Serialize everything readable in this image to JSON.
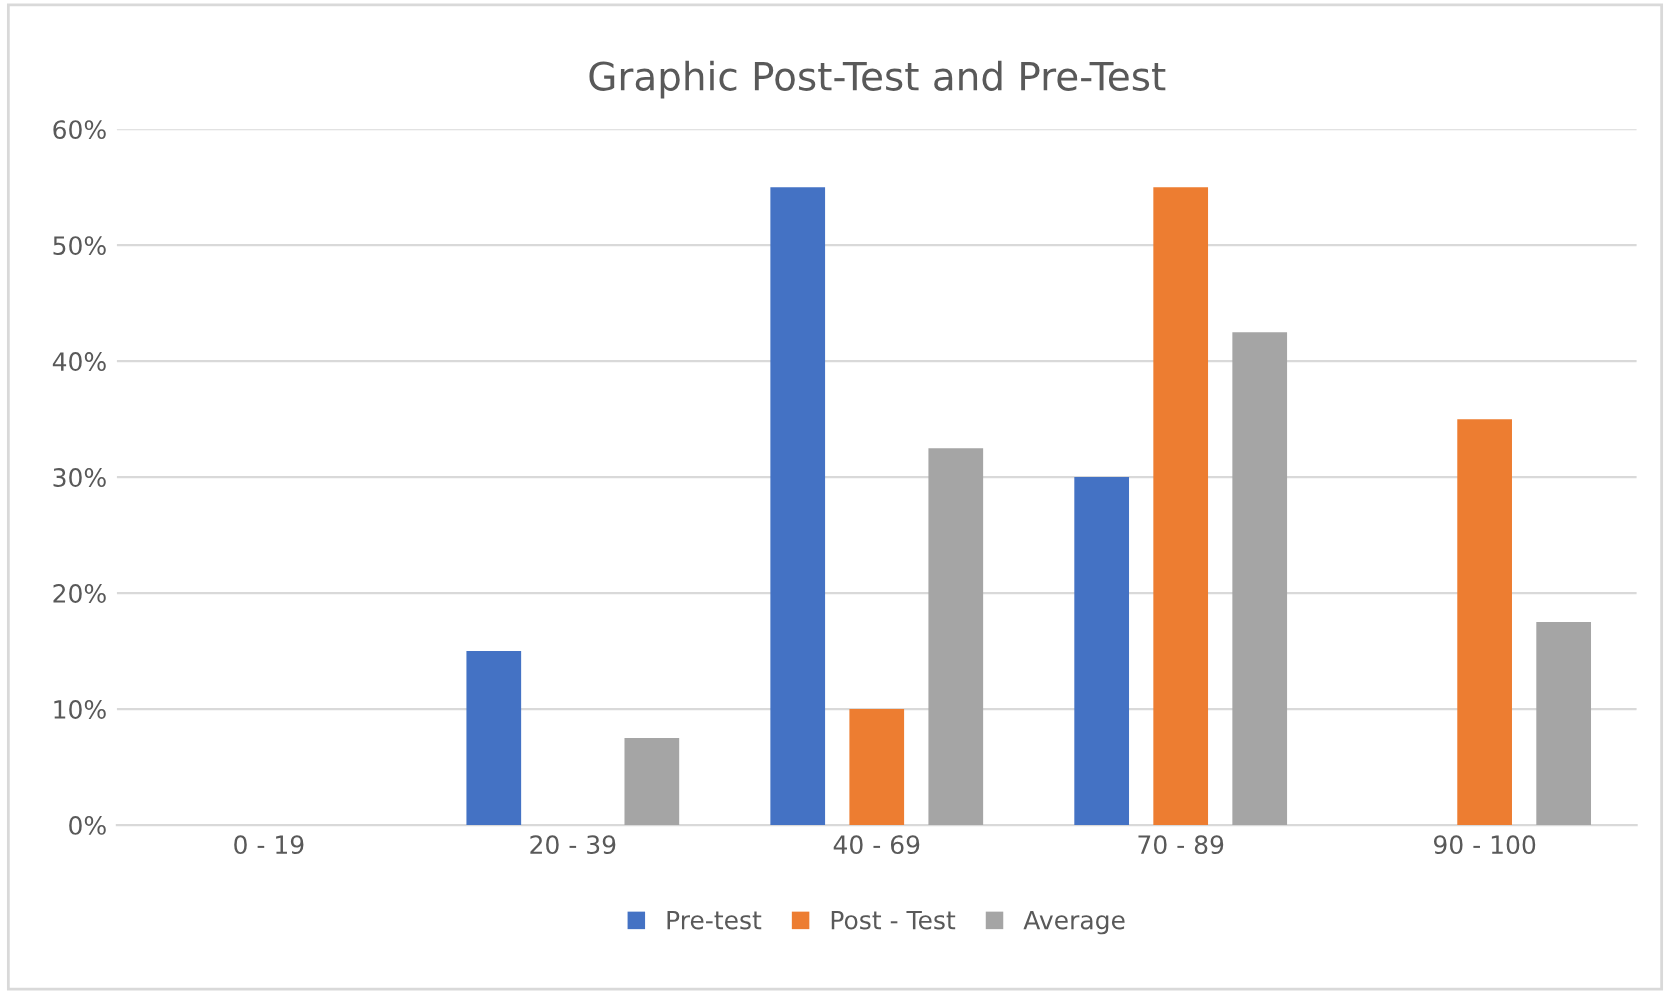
{
  "chart_data": {
    "type": "bar",
    "title": "Graphic Post-Test and Pre-Test",
    "categories": [
      "0 - 19",
      "20 - 39",
      "40 - 69",
      "70 - 89",
      "90 - 100"
    ],
    "series": [
      {
        "name": "Pre-test",
        "color": "#4472c4",
        "values": [
          0,
          15,
          55,
          30,
          0
        ]
      },
      {
        "name": "Post - Test",
        "color": "#ed7d31",
        "values": [
          0,
          0,
          10,
          55,
          35
        ]
      },
      {
        "name": "Average",
        "color": "#a5a5a5",
        "values": [
          0,
          7.5,
          32.5,
          42.5,
          17.5
        ]
      }
    ],
    "ylim": [
      0,
      60
    ],
    "yticks": [
      {
        "value": 0,
        "label": "0%"
      },
      {
        "value": 10,
        "label": "10%"
      },
      {
        "value": 20,
        "label": "20%"
      },
      {
        "value": 30,
        "label": "30%"
      },
      {
        "value": 40,
        "label": "40%"
      },
      {
        "value": 50,
        "label": "50%"
      },
      {
        "value": 60,
        "label": "60%"
      }
    ],
    "grid": "y",
    "legend": "bottom"
  }
}
